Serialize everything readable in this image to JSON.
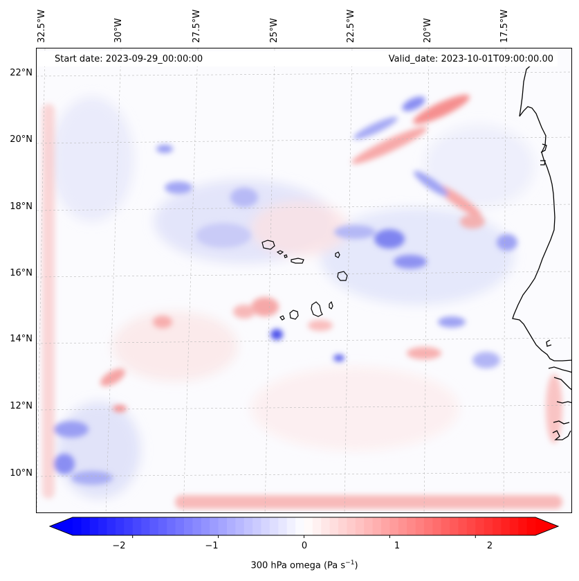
{
  "header": {
    "start_date": "Start date: 2023-09-29_00:00:00",
    "valid_date": "Valid_date: 2023-10-01T09:00:00.00"
  },
  "axes": {
    "lon_labels": [
      "32.5°W",
      "30°W",
      "27.5°W",
      "25°W",
      "22.5°W",
      "20°W",
      "17.5°W"
    ],
    "lat_labels": [
      "22°N",
      "20°N",
      "18°N",
      "16°N",
      "14°N",
      "12°N",
      "10°N"
    ]
  },
  "colorbar": {
    "tick_labels": [
      "−2",
      "−1",
      "0",
      "1",
      "2"
    ],
    "title_main": "300 hPa omega (Pa s",
    "title_sup": "−1",
    "title_end": ")",
    "min": -2.7,
    "max": 2.7,
    "colors": {
      "negative": "#0000ff",
      "zero": "#ffffff",
      "positive": "#ff0000"
    }
  },
  "map": {
    "region": "Cabo Verde / West African coast",
    "coast_color": "#000000"
  }
}
